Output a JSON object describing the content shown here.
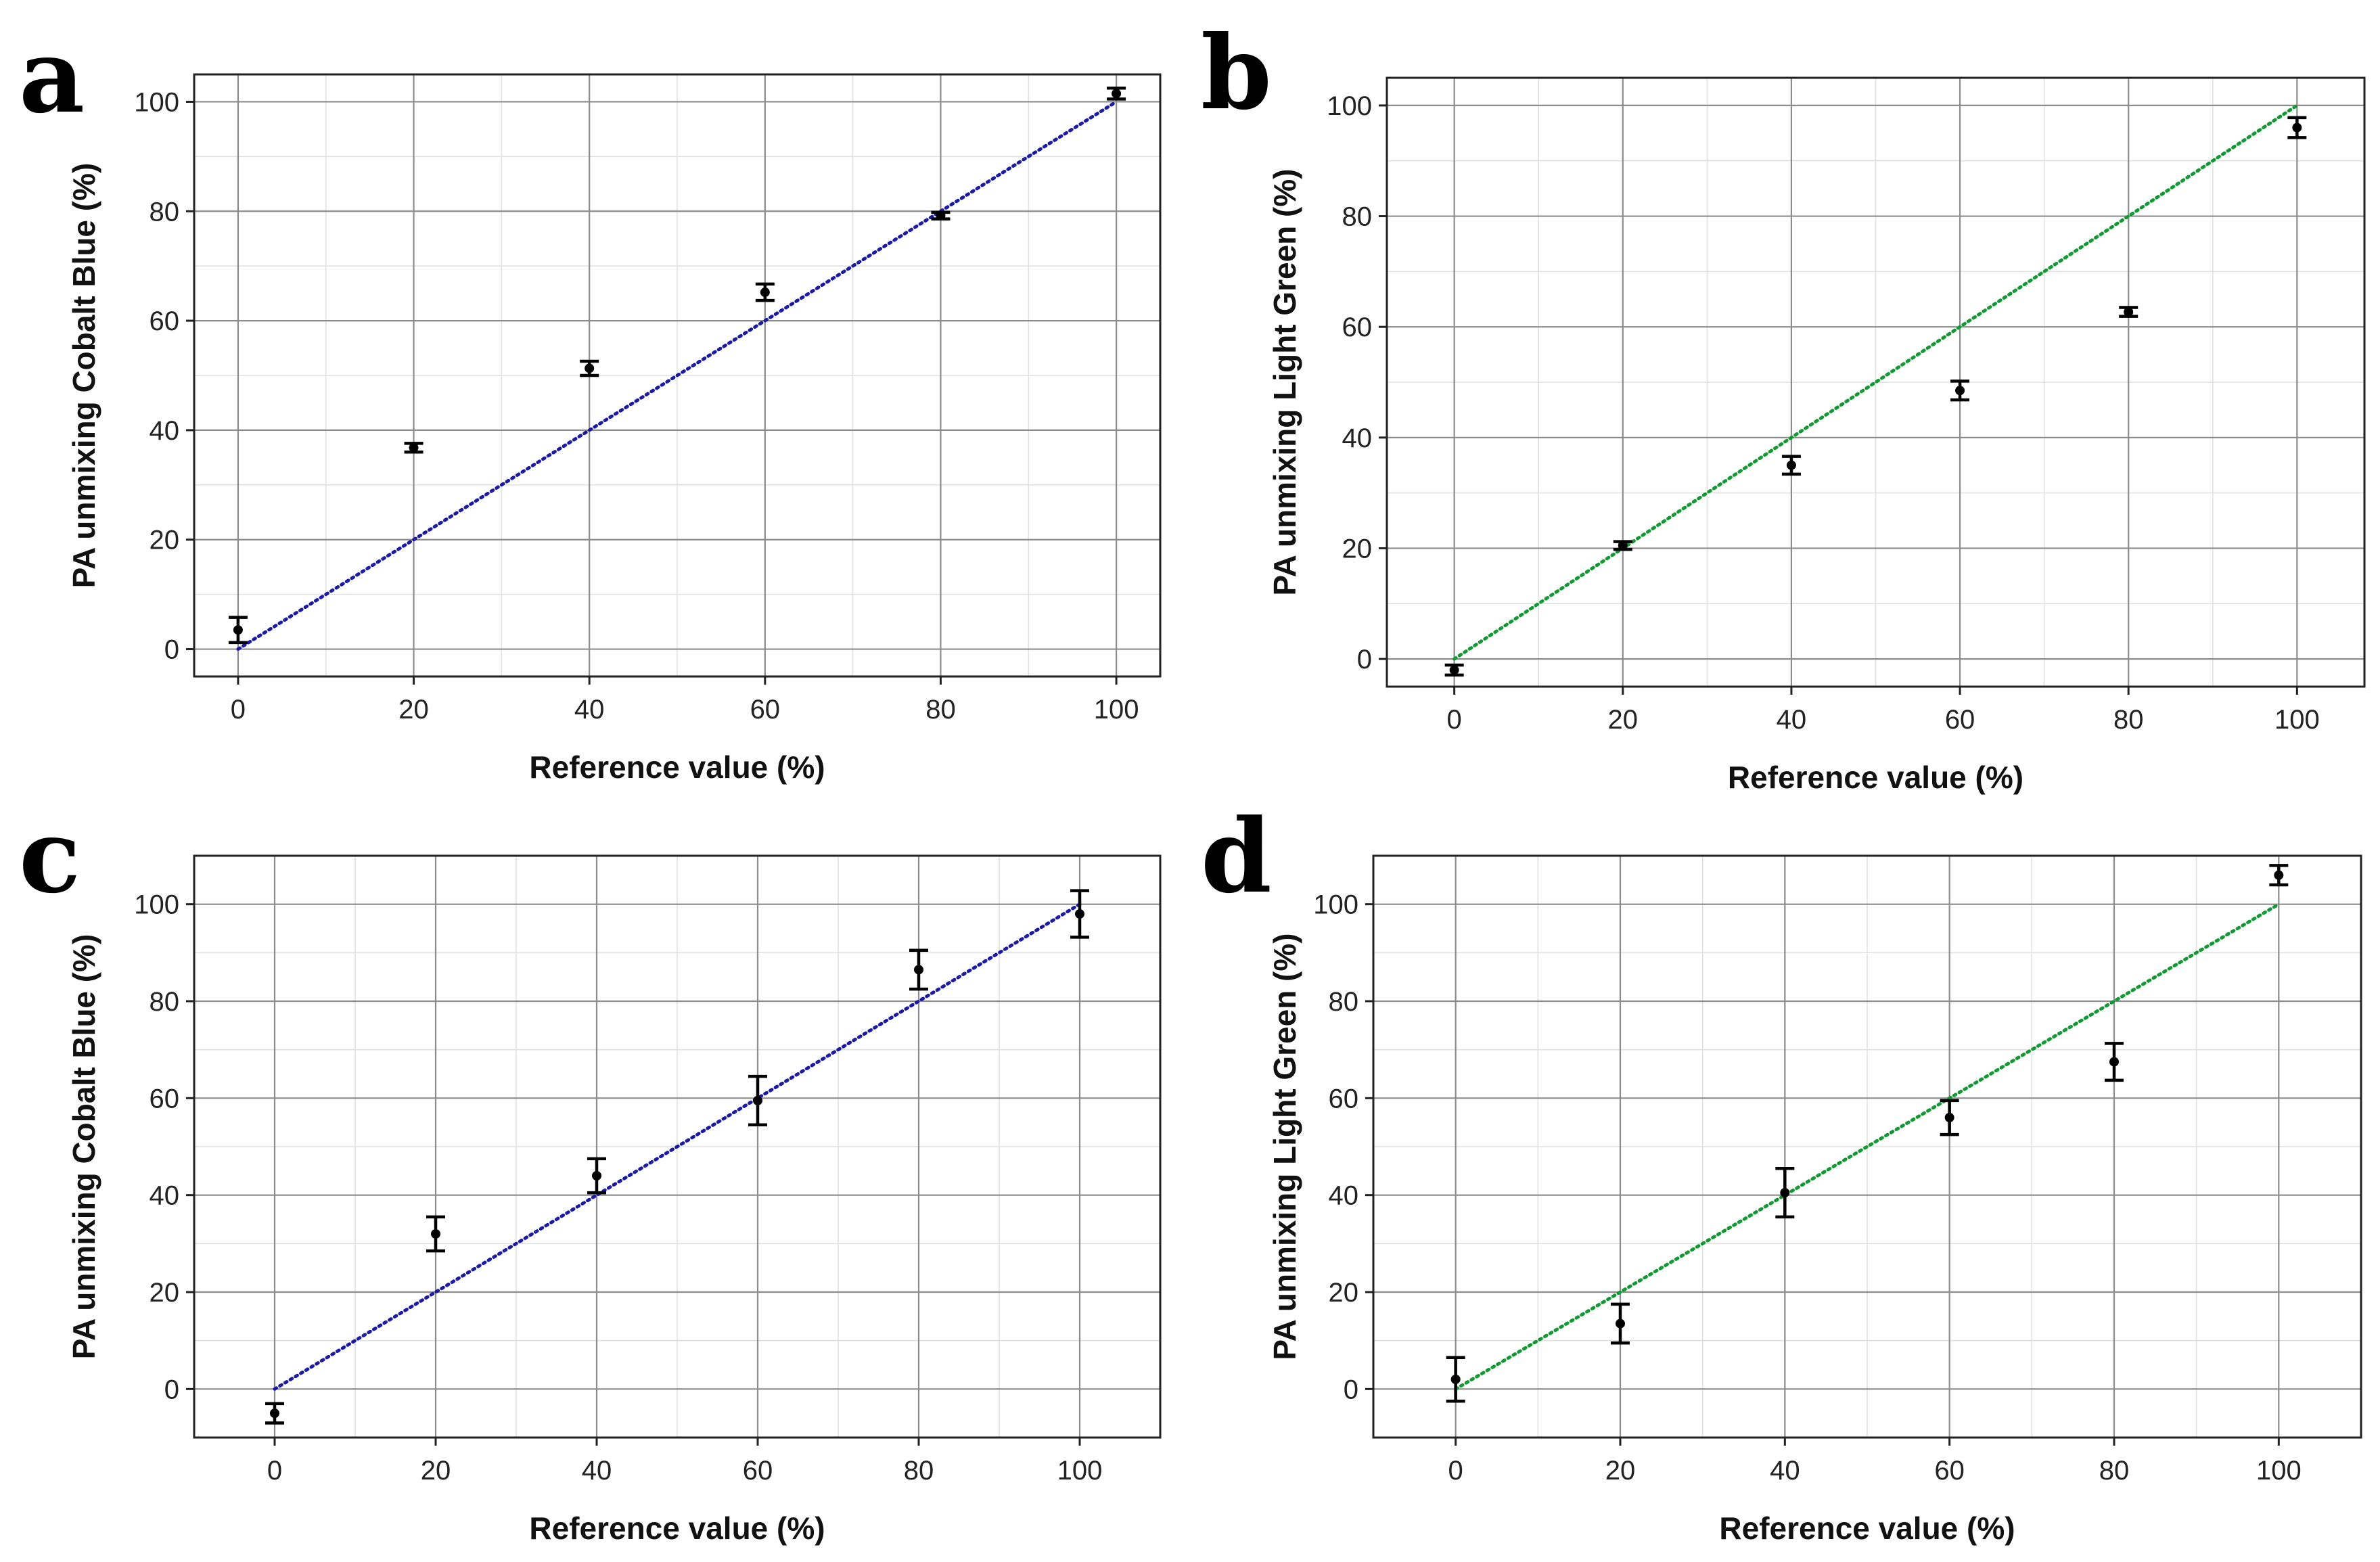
{
  "figure": {
    "colors": {
      "blue": "#1a1aa6",
      "green": "#119a33",
      "grid": "#8c8c8c",
      "frame": "#222222"
    }
  },
  "chart_data": [
    {
      "id": "a",
      "letter": "a",
      "type": "scatter",
      "xlabel": "Reference value (%)",
      "ylabel": "PA unmixing Cobalt Blue (%)",
      "xlim": [
        -5,
        105
      ],
      "ylim": [
        -5,
        105
      ],
      "xticks": [
        0,
        20,
        40,
        60,
        80,
        100
      ],
      "yticks": [
        0,
        20,
        40,
        60,
        80,
        100
      ],
      "reference_line": {
        "from": [
          0,
          0
        ],
        "to": [
          100,
          100
        ],
        "color": "#1a1aa6",
        "style": "dotted"
      },
      "points": [
        {
          "x": 0,
          "y": 3.5,
          "err": 2.3
        },
        {
          "x": 20,
          "y": 36.8,
          "err": 0.8
        },
        {
          "x": 40,
          "y": 51.3,
          "err": 1.3
        },
        {
          "x": 60,
          "y": 65.2,
          "err": 1.5
        },
        {
          "x": 80,
          "y": 79.2,
          "err": 0.6
        },
        {
          "x": 100,
          "y": 101.5,
          "err": 1.0
        }
      ]
    },
    {
      "id": "b",
      "letter": "b",
      "type": "scatter",
      "xlabel": "Reference value (%)",
      "ylabel": "PA unmixing Light Green (%)",
      "xlim": [
        -8,
        108
      ],
      "ylim": [
        -5,
        105
      ],
      "xticks": [
        0,
        20,
        40,
        60,
        80,
        100
      ],
      "yticks": [
        0,
        20,
        40,
        60,
        80,
        100
      ],
      "reference_line": {
        "from": [
          0,
          0
        ],
        "to": [
          100,
          100
        ],
        "color": "#119a33",
        "style": "dotted"
      },
      "points": [
        {
          "x": 0,
          "y": -2.0,
          "err": 0.9
        },
        {
          "x": 20,
          "y": 20.5,
          "err": 0.7
        },
        {
          "x": 40,
          "y": 35.0,
          "err": 1.6
        },
        {
          "x": 60,
          "y": 48.5,
          "err": 1.7
        },
        {
          "x": 80,
          "y": 62.7,
          "err": 0.8
        },
        {
          "x": 100,
          "y": 96.0,
          "err": 1.8
        }
      ]
    },
    {
      "id": "c",
      "letter": "c",
      "type": "scatter",
      "xlabel": "Reference value (%)",
      "ylabel": "PA unmixing Cobalt Blue (%)",
      "xlim": [
        -10,
        110
      ],
      "ylim": [
        -10,
        110
      ],
      "xticks": [
        0,
        20,
        40,
        60,
        80,
        100
      ],
      "yticks": [
        0,
        20,
        40,
        60,
        80,
        100
      ],
      "reference_line": {
        "from": [
          0,
          0
        ],
        "to": [
          100,
          100
        ],
        "color": "#1a1aa6",
        "style": "dotted"
      },
      "points": [
        {
          "x": 0,
          "y": -5.0,
          "err": 2.0
        },
        {
          "x": 20,
          "y": 32.0,
          "err": 3.5
        },
        {
          "x": 40,
          "y": 44.0,
          "err": 3.5
        },
        {
          "x": 60,
          "y": 59.5,
          "err": 5.0
        },
        {
          "x": 80,
          "y": 86.5,
          "err": 4.0
        },
        {
          "x": 100,
          "y": 98.0,
          "err": 4.8
        }
      ]
    },
    {
      "id": "d",
      "letter": "d",
      "type": "scatter",
      "xlabel": "Reference value (%)",
      "ylabel": "PA unmixing Light Green (%)",
      "xlim": [
        -10,
        110
      ],
      "ylim": [
        -10,
        110
      ],
      "xticks": [
        0,
        20,
        40,
        60,
        80,
        100
      ],
      "yticks": [
        0,
        20,
        40,
        60,
        80,
        100
      ],
      "reference_line": {
        "from": [
          0,
          0
        ],
        "to": [
          100,
          100
        ],
        "color": "#119a33",
        "style": "dotted"
      },
      "points": [
        {
          "x": 0,
          "y": 2.0,
          "err": 4.5
        },
        {
          "x": 20,
          "y": 13.5,
          "err": 4.0
        },
        {
          "x": 40,
          "y": 40.5,
          "err": 5.0
        },
        {
          "x": 60,
          "y": 56.0,
          "err": 3.5
        },
        {
          "x": 80,
          "y": 67.5,
          "err": 3.8
        },
        {
          "x": 100,
          "y": 106.0,
          "err": 2.0
        }
      ]
    }
  ]
}
